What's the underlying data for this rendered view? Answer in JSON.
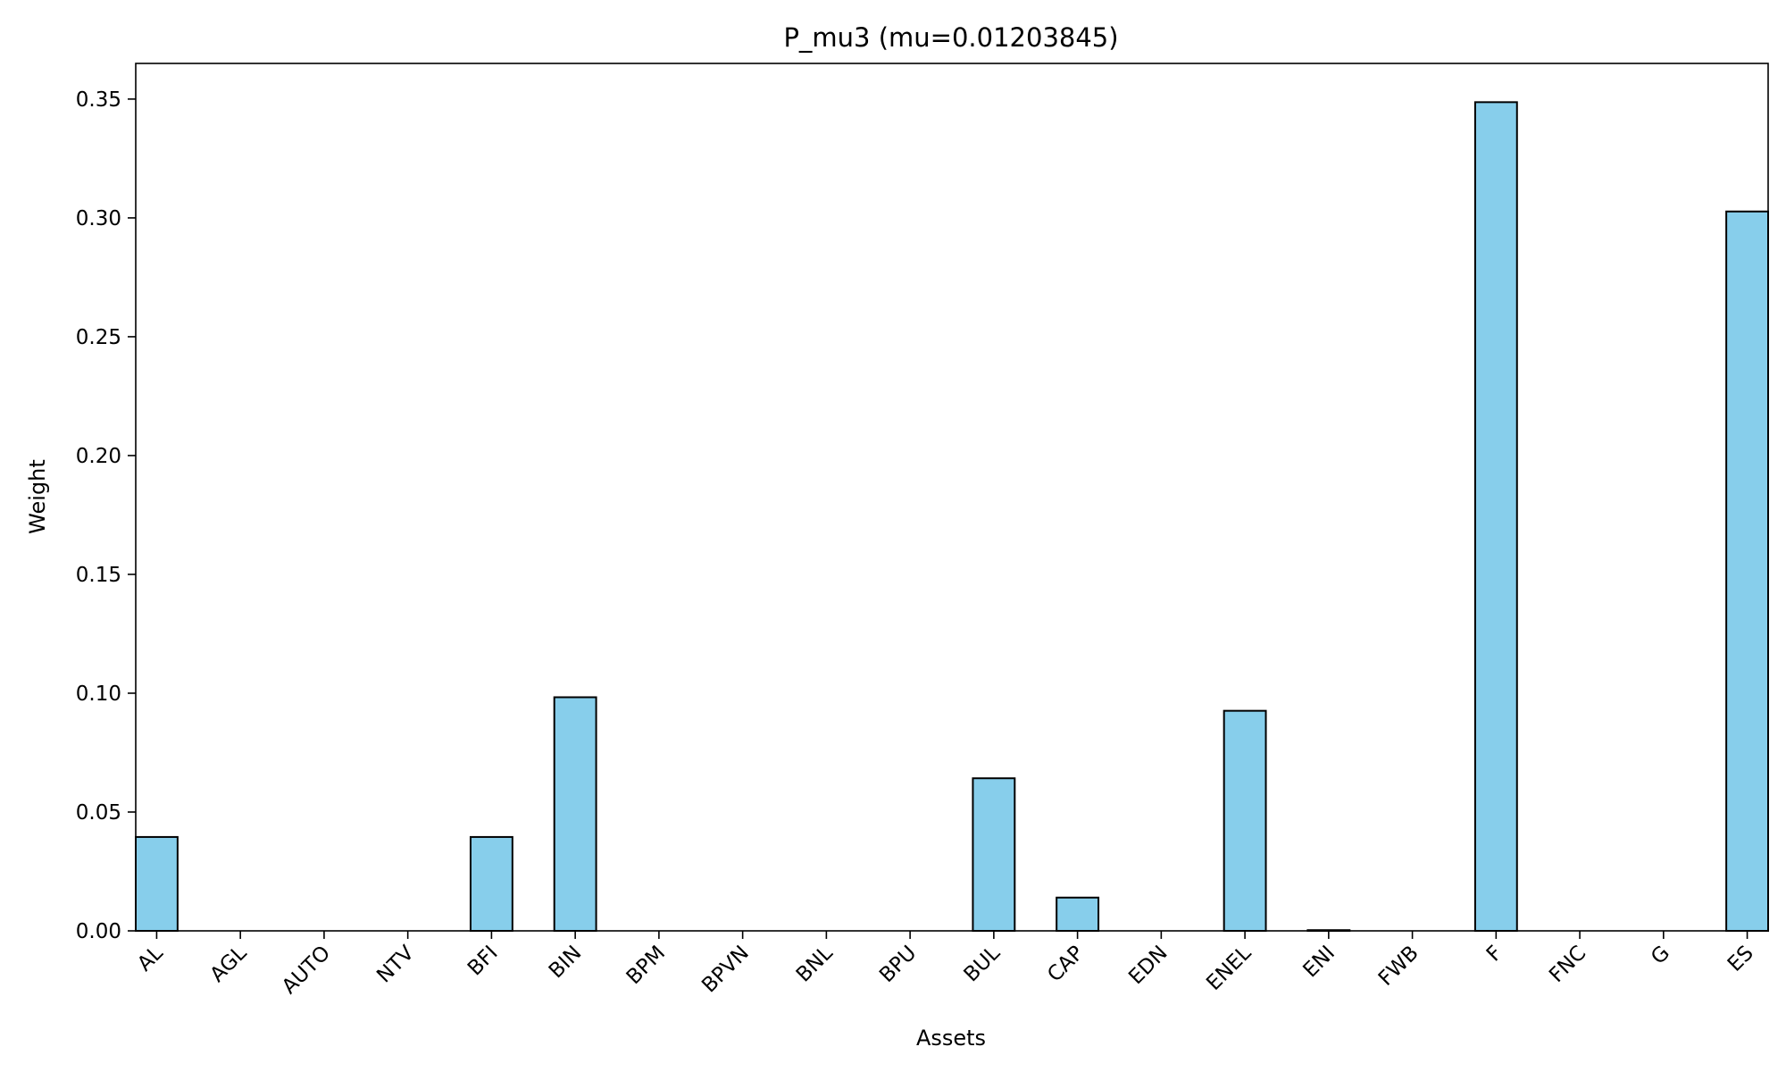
{
  "chart_data": {
    "type": "bar",
    "title": "P_mu3 (mu=0.01203845)",
    "xlabel": "Assets",
    "ylabel": "Weight",
    "categories": [
      "AL",
      "AGL",
      "AUTO",
      "NTV",
      "BFI",
      "BIN",
      "BPM",
      "BPVN",
      "BNL",
      "BPU",
      "BUL",
      "CAP",
      "EDN",
      "ENEL",
      "ENI",
      "FWB",
      "F",
      "FNC",
      "G",
      "ES"
    ],
    "values": [
      0.0395,
      0,
      0,
      0,
      0.0395,
      0.0983,
      0,
      0,
      0,
      0,
      0.0642,
      0.014,
      0,
      0.0926,
      0.0003,
      0,
      0.3487,
      0,
      0,
      0.3027
    ],
    "ylim": [
      0,
      0.365
    ],
    "yticks": [
      "0.00",
      "0.05",
      "0.10",
      "0.15",
      "0.20",
      "0.25",
      "0.30",
      "0.35"
    ],
    "grid": false,
    "bar_color": "#87ceeb",
    "edge_color": "#000000"
  }
}
